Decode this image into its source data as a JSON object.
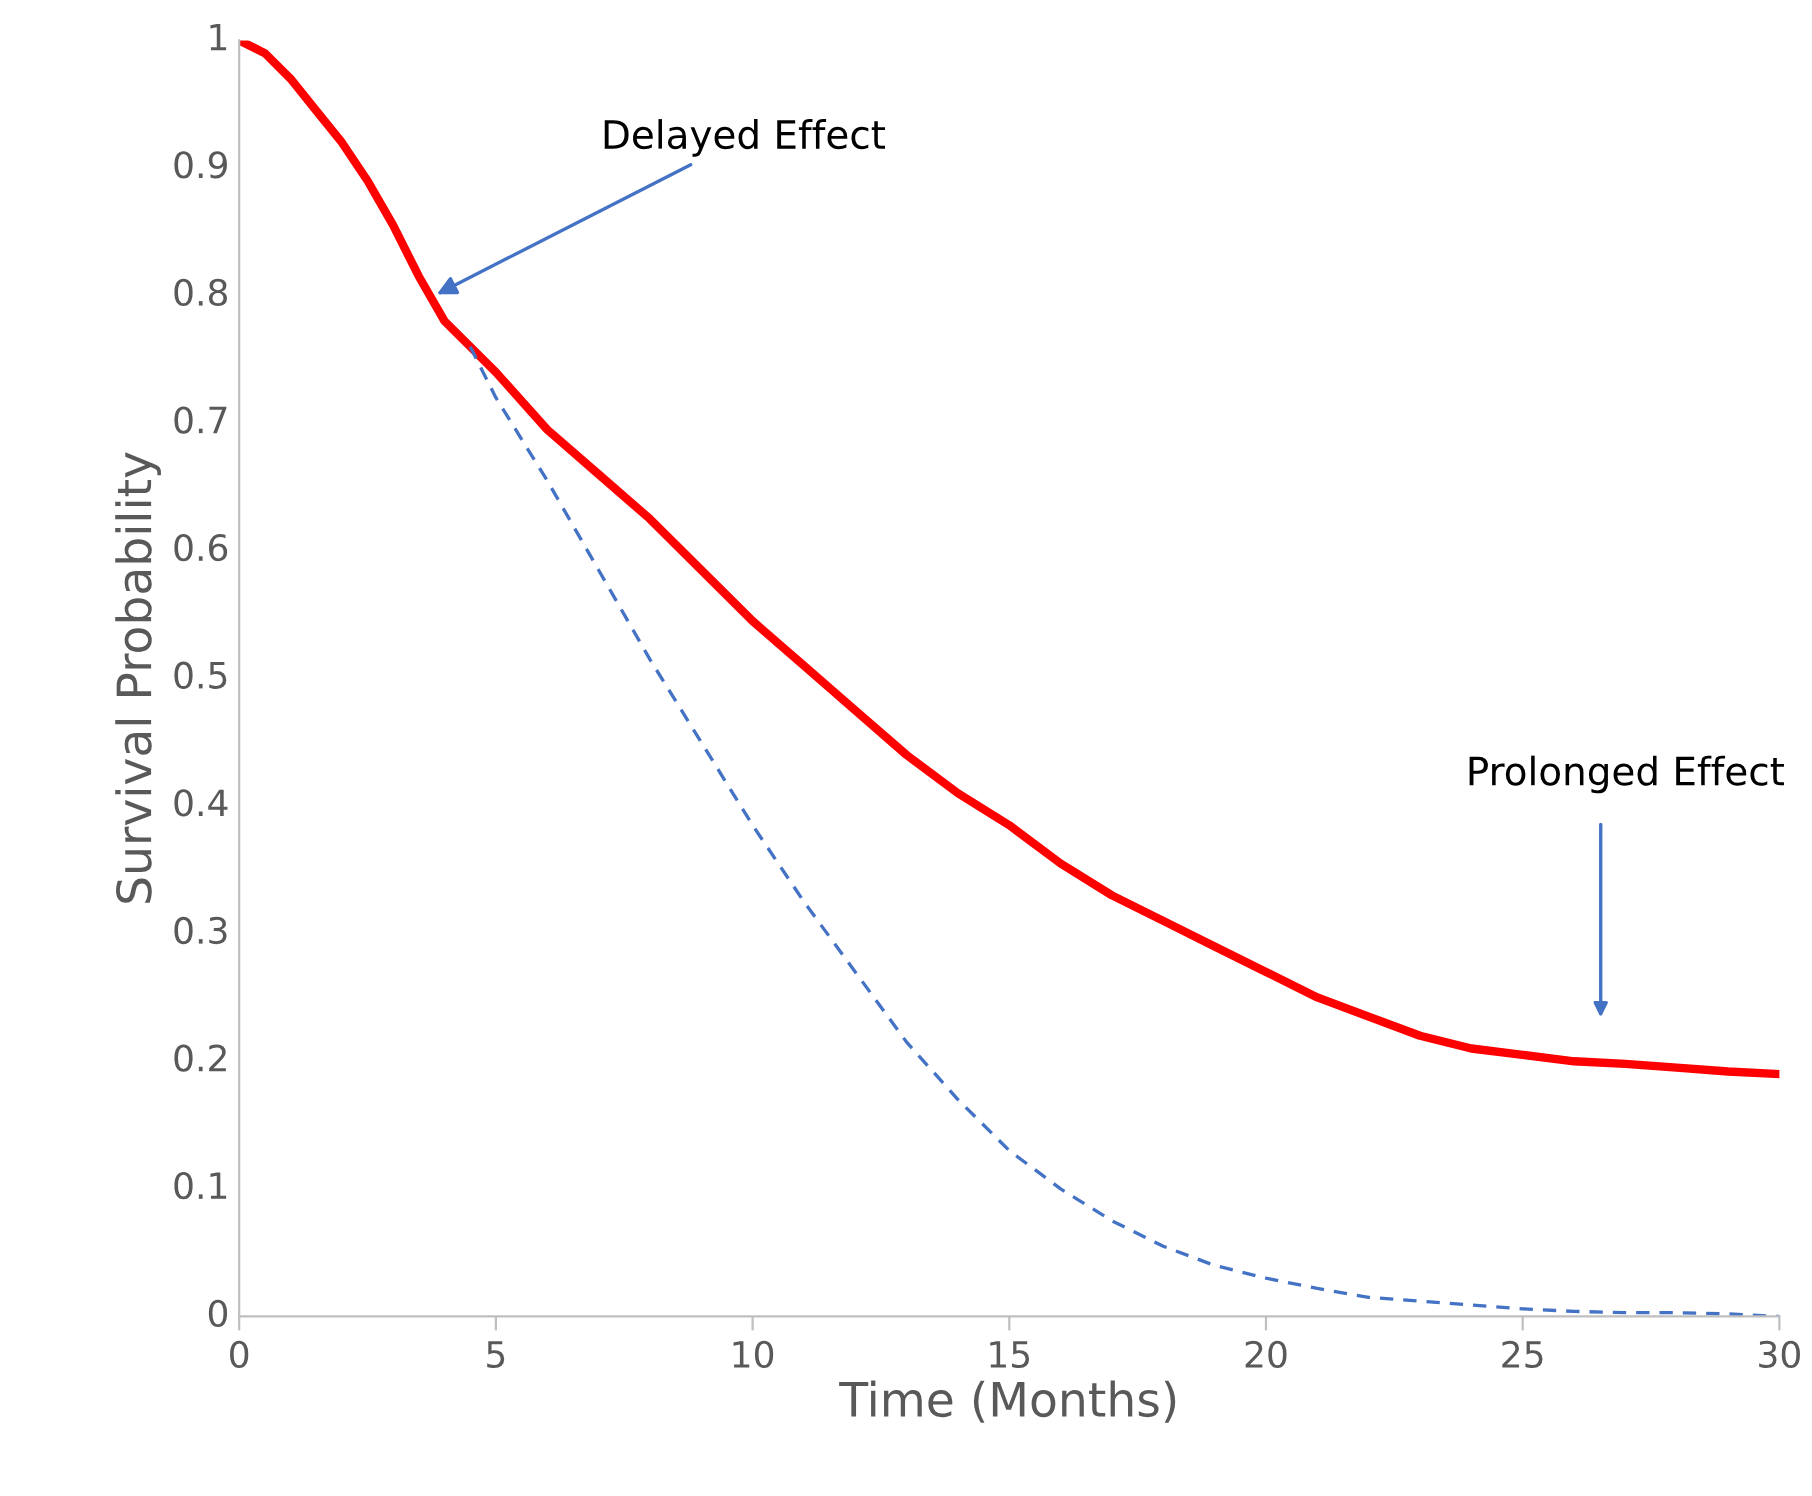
{
  "chart_data": {
    "type": "line",
    "xlabel": "Time (Months)",
    "ylabel": "Survival Probability",
    "xlim": [
      0,
      30
    ],
    "ylim": [
      0,
      1
    ],
    "xticks": [
      0,
      5,
      10,
      15,
      20,
      25,
      30
    ],
    "yticks": [
      0,
      0.1,
      0.2,
      0.3,
      0.4,
      0.5,
      0.6,
      0.7,
      0.8,
      0.9,
      1
    ],
    "grid": false,
    "legend": false,
    "marker": "none",
    "series": [
      {
        "color": "#ff0000",
        "line_style": "solid",
        "x": [
          0,
          0.5,
          1,
          1.5,
          2,
          2.5,
          3,
          3.5,
          4,
          4.5,
          5,
          6,
          7,
          8,
          9,
          10,
          11,
          12,
          13,
          14,
          15,
          16,
          17,
          18,
          19,
          20,
          21,
          22,
          23,
          24,
          25,
          26,
          27,
          28,
          29,
          30
        ],
        "values": [
          1.0,
          0.99,
          0.97,
          0.945,
          0.92,
          0.89,
          0.855,
          0.815,
          0.78,
          0.76,
          0.74,
          0.695,
          0.66,
          0.625,
          0.585,
          0.545,
          0.51,
          0.475,
          0.44,
          0.41,
          0.385,
          0.355,
          0.33,
          0.31,
          0.29,
          0.27,
          0.25,
          0.235,
          0.22,
          0.21,
          0.205,
          0.2,
          0.198,
          0.195,
          0.192,
          0.19
        ]
      },
      {
        "color": "#4472c4",
        "line_style": "dashed",
        "x": [
          4.5,
          5,
          6,
          7,
          8,
          9,
          10,
          11,
          12,
          13,
          14,
          15,
          16,
          17,
          18,
          19,
          20,
          21,
          22,
          23,
          24,
          25,
          26,
          27,
          28,
          29,
          30
        ],
        "values": [
          0.76,
          0.72,
          0.655,
          0.585,
          0.515,
          0.45,
          0.385,
          0.325,
          0.27,
          0.215,
          0.17,
          0.13,
          0.1,
          0.075,
          0.055,
          0.04,
          0.03,
          0.022,
          0.015,
          0.012,
          0.009,
          0.006,
          0.004,
          0.003,
          0.003,
          0.002,
          0.0
        ]
      }
    ],
    "annotations": [
      {
        "text": "Delayed Effect",
        "x": 3.8,
        "y": 0.8
      },
      "Prolonged Effect"
    ]
  }
}
